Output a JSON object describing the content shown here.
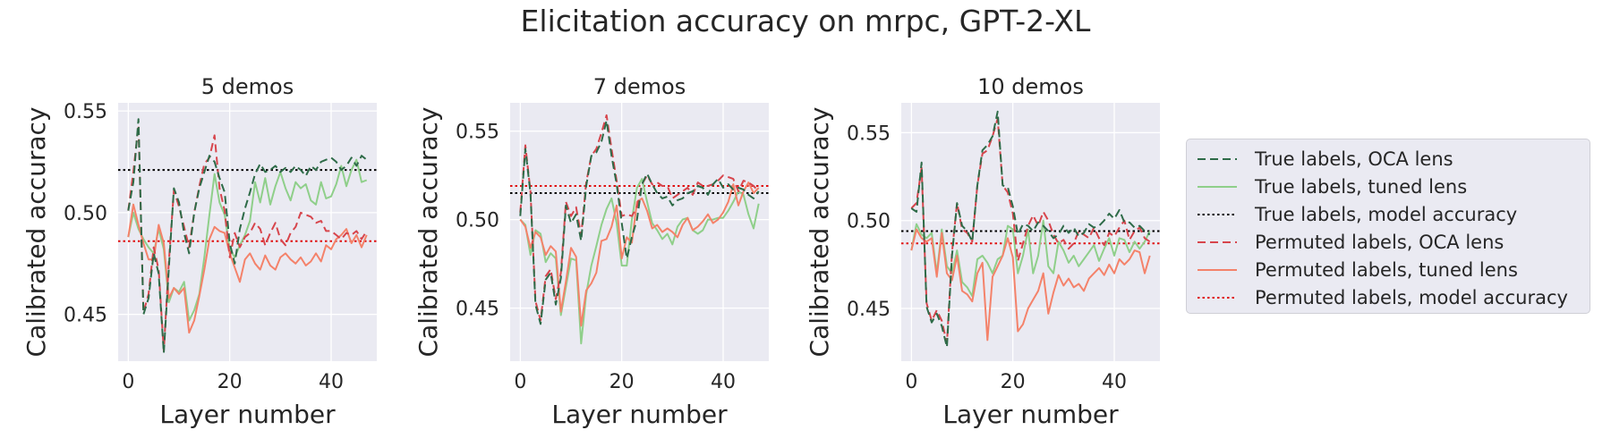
{
  "figure": {
    "title": "Elicitation accuracy on mrpc, GPT-2-XL"
  },
  "colors": {
    "true_oca": "#2e6b48",
    "true_tuned": "#8fcf8a",
    "true_model": "#000000",
    "perm_oca": "#d7454c",
    "perm_tuned": "#f4826a",
    "perm_model": "#e01010",
    "panel_bg": "#eaeaf2",
    "grid": "#ffffff"
  },
  "legend": {
    "items": [
      {
        "label": "True labels, OCA lens",
        "style": "dashed",
        "color": "#2e6b48"
      },
      {
        "label": "True labels, tuned lens",
        "style": "solid",
        "color": "#8fcf8a"
      },
      {
        "label": "True labels, model accuracy",
        "style": "dotted",
        "color": "#000000"
      },
      {
        "label": "Permuted labels, OCA lens",
        "style": "dashed",
        "color": "#d7454c"
      },
      {
        "label": "Permuted labels, tuned lens",
        "style": "solid",
        "color": "#f4826a"
      },
      {
        "label": "Permuted labels, model accuracy",
        "style": "dotted",
        "color": "#e01010"
      }
    ]
  },
  "chart_data": [
    {
      "type": "line",
      "title": "5 demos",
      "xlabel": "Layer number",
      "ylabel": "Calibrated accuracy",
      "xlim": [
        -2,
        49
      ],
      "ylim": [
        0.427,
        0.554
      ],
      "xticks": [
        0,
        20,
        40
      ],
      "yticks": [
        0.45,
        0.5,
        0.55
      ],
      "ytick_labels": [
        "0.45",
        "0.50",
        "0.55"
      ],
      "hlines": {
        "true_model": 0.521,
        "perm_model": 0.486
      },
      "x": [
        0,
        1,
        2,
        3,
        4,
        5,
        6,
        7,
        8,
        9,
        10,
        11,
        12,
        13,
        14,
        15,
        16,
        17,
        18,
        19,
        20,
        21,
        22,
        23,
        24,
        25,
        26,
        27,
        28,
        29,
        30,
        31,
        32,
        33,
        34,
        35,
        36,
        37,
        38,
        39,
        40,
        41,
        42,
        43,
        44,
        45,
        46,
        47
      ],
      "series": [
        {
          "name": "True labels, OCA lens",
          "key": "true_oca",
          "style": "dashed",
          "values": [
            0.501,
            0.515,
            0.546,
            0.45,
            0.458,
            0.48,
            0.47,
            0.431,
            0.473,
            0.512,
            0.505,
            0.49,
            0.48,
            0.5,
            0.512,
            0.52,
            0.528,
            0.525,
            0.517,
            0.51,
            0.485,
            0.475,
            0.492,
            0.502,
            0.51,
            0.519,
            0.524,
            0.52,
            0.521,
            0.523,
            0.52,
            0.522,
            0.52,
            0.523,
            0.521,
            0.518,
            0.523,
            0.521,
            0.525,
            0.526,
            0.527,
            0.525,
            0.521,
            0.523,
            0.527,
            0.523,
            0.528,
            0.526
          ]
        },
        {
          "name": "True labels, tuned lens",
          "key": "true_tuned",
          "style": "solid",
          "values": [
            0.488,
            0.5,
            0.492,
            0.487,
            0.483,
            0.48,
            0.492,
            0.482,
            0.456,
            0.463,
            0.461,
            0.466,
            0.447,
            0.452,
            0.46,
            0.478,
            0.499,
            0.519,
            0.505,
            0.499,
            0.482,
            0.478,
            0.484,
            0.489,
            0.496,
            0.515,
            0.505,
            0.517,
            0.504,
            0.513,
            0.52,
            0.512,
            0.506,
            0.515,
            0.512,
            0.514,
            0.506,
            0.504,
            0.515,
            0.507,
            0.508,
            0.514,
            0.523,
            0.513,
            0.521,
            0.526,
            0.515,
            0.516
          ]
        },
        {
          "name": "Permuted labels, OCA lens",
          "key": "perm_oca",
          "style": "dashed",
          "values": [
            0.501,
            0.52,
            0.543,
            0.451,
            0.46,
            0.483,
            0.472,
            0.432,
            0.476,
            0.511,
            0.503,
            0.493,
            0.483,
            0.5,
            0.513,
            0.524,
            0.527,
            0.538,
            0.512,
            0.501,
            0.478,
            0.49,
            0.483,
            0.488,
            0.49,
            0.495,
            0.492,
            0.484,
            0.49,
            0.495,
            0.487,
            0.484,
            0.49,
            0.493,
            0.5,
            0.499,
            0.498,
            0.495,
            0.496,
            0.491,
            0.491,
            0.489,
            0.487,
            0.49,
            0.489,
            0.491,
            0.487,
            0.491
          ]
        },
        {
          "name": "Permuted labels, tuned lens",
          "key": "perm_tuned",
          "style": "solid",
          "values": [
            0.488,
            0.504,
            0.494,
            0.485,
            0.477,
            0.477,
            0.494,
            0.485,
            0.458,
            0.463,
            0.46,
            0.463,
            0.441,
            0.447,
            0.459,
            0.472,
            0.487,
            0.493,
            0.491,
            0.49,
            0.48,
            0.473,
            0.466,
            0.477,
            0.48,
            0.475,
            0.472,
            0.479,
            0.474,
            0.472,
            0.478,
            0.48,
            0.477,
            0.475,
            0.478,
            0.474,
            0.476,
            0.48,
            0.476,
            0.484,
            0.482,
            0.487,
            0.489,
            0.492,
            0.485,
            0.489,
            0.483,
            0.489
          ]
        }
      ]
    },
    {
      "type": "line",
      "title": "7 demos",
      "xlabel": "Layer number",
      "ylabel": "Calibrated accuracy",
      "xlim": [
        -2,
        49
      ],
      "ylim": [
        0.42,
        0.566
      ],
      "xticks": [
        0,
        20,
        40
      ],
      "yticks": [
        0.45,
        0.5,
        0.55
      ],
      "ytick_labels": [
        "0.45",
        "0.50",
        "0.55"
      ],
      "hlines": {
        "true_model": 0.515,
        "perm_model": 0.519
      },
      "x": [
        0,
        1,
        2,
        3,
        4,
        5,
        6,
        7,
        8,
        9,
        10,
        11,
        12,
        13,
        14,
        15,
        16,
        17,
        18,
        19,
        20,
        21,
        22,
        23,
        24,
        25,
        26,
        27,
        28,
        29,
        30,
        31,
        32,
        33,
        34,
        35,
        36,
        37,
        38,
        39,
        40,
        41,
        42,
        43,
        44,
        45,
        46,
        47
      ],
      "series": [
        {
          "name": "True labels, OCA lens",
          "key": "true_oca",
          "style": "dashed",
          "values": [
            0.502,
            0.54,
            0.515,
            0.452,
            0.441,
            0.466,
            0.47,
            0.452,
            0.467,
            0.508,
            0.498,
            0.503,
            0.488,
            0.519,
            0.536,
            0.538,
            0.544,
            0.556,
            0.536,
            0.52,
            0.498,
            0.478,
            0.49,
            0.5,
            0.52,
            0.526,
            0.52,
            0.515,
            0.512,
            0.513,
            0.508,
            0.511,
            0.512,
            0.515,
            0.516,
            0.519,
            0.518,
            0.514,
            0.52,
            0.523,
            0.518,
            0.52,
            0.517,
            0.518,
            0.517,
            0.514,
            0.512,
            0.516
          ]
        },
        {
          "name": "True labels, tuned lens",
          "key": "true_tuned",
          "style": "solid",
          "values": [
            0.5,
            0.497,
            0.48,
            0.494,
            0.492,
            0.476,
            0.481,
            0.478,
            0.446,
            0.462,
            0.478,
            0.477,
            0.43,
            0.458,
            0.474,
            0.485,
            0.497,
            0.506,
            0.512,
            0.498,
            0.474,
            0.474,
            0.5,
            0.518,
            0.523,
            0.51,
            0.498,
            0.494,
            0.489,
            0.492,
            0.486,
            0.496,
            0.5,
            0.501,
            0.494,
            0.492,
            0.494,
            0.5,
            0.5,
            0.501,
            0.501,
            0.505,
            0.51,
            0.516,
            0.514,
            0.503,
            0.495,
            0.509
          ]
        },
        {
          "name": "Permuted labels, OCA lens",
          "key": "perm_oca",
          "style": "dashed",
          "values": [
            0.504,
            0.542,
            0.516,
            0.454,
            0.443,
            0.468,
            0.472,
            0.455,
            0.47,
            0.51,
            0.502,
            0.507,
            0.491,
            0.521,
            0.536,
            0.54,
            0.549,
            0.559,
            0.54,
            0.522,
            0.502,
            0.503,
            0.502,
            0.507,
            0.52,
            0.525,
            0.52,
            0.521,
            0.519,
            0.519,
            0.512,
            0.514,
            0.516,
            0.518,
            0.514,
            0.521,
            0.519,
            0.519,
            0.52,
            0.522,
            0.525,
            0.524,
            0.523,
            0.516,
            0.522,
            0.521,
            0.519,
            0.516
          ]
        },
        {
          "name": "Permuted labels, tuned lens",
          "key": "perm_tuned",
          "style": "solid",
          "values": [
            0.5,
            0.496,
            0.484,
            0.493,
            0.49,
            0.48,
            0.485,
            0.482,
            0.448,
            0.465,
            0.484,
            0.479,
            0.44,
            0.46,
            0.464,
            0.47,
            0.488,
            0.489,
            0.496,
            0.508,
            0.478,
            0.49,
            0.487,
            0.51,
            0.512,
            0.505,
            0.495,
            0.497,
            0.493,
            0.495,
            0.493,
            0.49,
            0.497,
            0.501,
            0.494,
            0.496,
            0.499,
            0.503,
            0.498,
            0.5,
            0.504,
            0.51,
            0.52,
            0.508,
            0.516,
            0.521,
            0.515,
            0.518
          ]
        }
      ]
    },
    {
      "type": "line",
      "title": "10 demos",
      "xlabel": "Layer number",
      "ylabel": "Calibrated accuracy",
      "xlim": [
        -2,
        49
      ],
      "ylim": [
        0.42,
        0.567
      ],
      "xticks": [
        0,
        20,
        40
      ],
      "yticks": [
        0.45,
        0.5,
        0.55
      ],
      "ytick_labels": [
        "0.45",
        "0.50",
        "0.55"
      ],
      "hlines": {
        "true_model": 0.494,
        "perm_model": 0.487
      },
      "x": [
        0,
        1,
        2,
        3,
        4,
        5,
        6,
        7,
        8,
        9,
        10,
        11,
        12,
        13,
        14,
        15,
        16,
        17,
        18,
        19,
        20,
        21,
        22,
        23,
        24,
        25,
        26,
        27,
        28,
        29,
        30,
        31,
        32,
        33,
        34,
        35,
        36,
        37,
        38,
        39,
        40,
        41,
        42,
        43,
        44,
        45,
        46,
        47
      ],
      "series": [
        {
          "name": "True labels, OCA lens",
          "key": "true_oca",
          "style": "dashed",
          "values": [
            0.507,
            0.505,
            0.533,
            0.451,
            0.442,
            0.447,
            0.44,
            0.428,
            0.48,
            0.51,
            0.497,
            0.494,
            0.488,
            0.52,
            0.54,
            0.543,
            0.548,
            0.562,
            0.52,
            0.519,
            0.508,
            0.492,
            0.498,
            0.497,
            0.494,
            0.499,
            0.497,
            0.494,
            0.49,
            0.492,
            0.497,
            0.493,
            0.496,
            0.491,
            0.493,
            0.498,
            0.496,
            0.497,
            0.5,
            0.504,
            0.501,
            0.506,
            0.499,
            0.499,
            0.496,
            0.497,
            0.494,
            0.492
          ]
        },
        {
          "name": "True labels, tuned lens",
          "key": "true_tuned",
          "style": "solid",
          "values": [
            0.483,
            0.498,
            0.492,
            0.49,
            0.493,
            0.47,
            0.495,
            0.474,
            0.47,
            0.483,
            0.465,
            0.462,
            0.457,
            0.478,
            0.48,
            0.476,
            0.47,
            0.478,
            0.48,
            0.497,
            0.495,
            0.47,
            0.48,
            0.495,
            0.47,
            0.48,
            0.5,
            0.474,
            0.47,
            0.488,
            0.483,
            0.476,
            0.48,
            0.474,
            0.478,
            0.482,
            0.486,
            0.477,
            0.484,
            0.49,
            0.48,
            0.49,
            0.489,
            0.482,
            0.488,
            0.484,
            0.488,
            0.494
          ]
        },
        {
          "name": "Permuted labels, OCA lens",
          "key": "perm_oca",
          "style": "dashed",
          "values": [
            0.507,
            0.51,
            0.53,
            0.453,
            0.443,
            0.449,
            0.443,
            0.43,
            0.482,
            0.51,
            0.495,
            0.493,
            0.488,
            0.52,
            0.538,
            0.54,
            0.548,
            0.558,
            0.52,
            0.516,
            0.504,
            0.477,
            0.487,
            0.497,
            0.503,
            0.497,
            0.505,
            0.5,
            0.492,
            0.487,
            0.489,
            0.484,
            0.487,
            0.494,
            0.492,
            0.49,
            0.496,
            0.49,
            0.486,
            0.493,
            0.491,
            0.496,
            0.5,
            0.489,
            0.494,
            0.496,
            0.49,
            0.488
          ]
        },
        {
          "name": "Permuted labels, tuned lens",
          "key": "perm_tuned",
          "style": "solid",
          "values": [
            0.483,
            0.495,
            0.49,
            0.488,
            0.49,
            0.468,
            0.493,
            0.47,
            0.466,
            0.48,
            0.46,
            0.458,
            0.454,
            0.47,
            0.476,
            0.432,
            0.468,
            0.474,
            0.48,
            0.49,
            0.479,
            0.437,
            0.441,
            0.45,
            0.455,
            0.46,
            0.47,
            0.447,
            0.459,
            0.469,
            0.463,
            0.467,
            0.462,
            0.464,
            0.46,
            0.467,
            0.47,
            0.473,
            0.469,
            0.475,
            0.47,
            0.478,
            0.475,
            0.478,
            0.483,
            0.482,
            0.47,
            0.48
          ]
        }
      ]
    }
  ]
}
